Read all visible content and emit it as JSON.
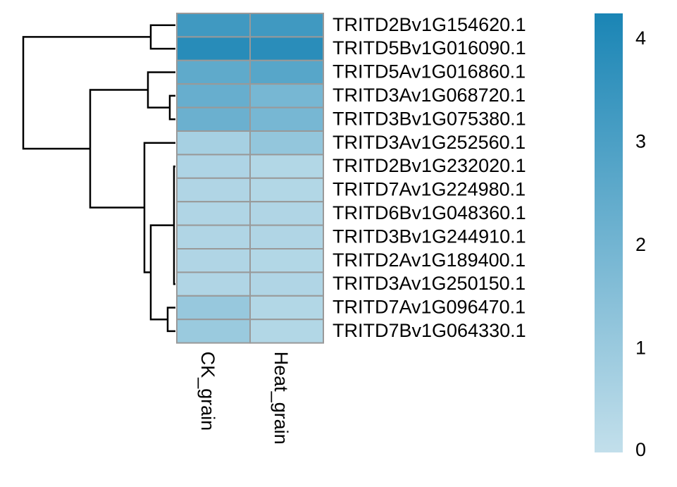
{
  "chart_data": {
    "type": "heatmap",
    "columns": [
      "CK_grain",
      "Heat_grain"
    ],
    "rows": [
      {
        "gene": "TRITD2Bv1G154620.1",
        "values": [
          3.3,
          3.3
        ]
      },
      {
        "gene": "TRITD5Bv1G016090.1",
        "values": [
          3.9,
          3.85
        ]
      },
      {
        "gene": "TRITD5Av1G016860.1",
        "values": [
          2.5,
          2.7
        ]
      },
      {
        "gene": "TRITD3Av1G068720.1",
        "values": [
          2.3,
          1.9
        ]
      },
      {
        "gene": "TRITD3Bv1G075380.1",
        "values": [
          2.2,
          1.9
        ]
      },
      {
        "gene": "TRITD3Av1G252560.1",
        "values": [
          0.7,
          1.2
        ]
      },
      {
        "gene": "TRITD2Bv1G232020.1",
        "values": [
          0.5,
          0.4
        ]
      },
      {
        "gene": "TRITD7Av1G224980.1",
        "values": [
          0.45,
          0.4
        ]
      },
      {
        "gene": "TRITD6Bv1G048360.1",
        "values": [
          0.45,
          0.45
        ]
      },
      {
        "gene": "TRITD3Bv1G244910.1",
        "values": [
          0.45,
          0.45
        ]
      },
      {
        "gene": "TRITD2Av1G189400.1",
        "values": [
          0.45,
          0.4
        ]
      },
      {
        "gene": "TRITD3Av1G250150.1",
        "values": [
          0.45,
          0.45
        ]
      },
      {
        "gene": "TRITD7Av1G096470.1",
        "values": [
          1.1,
          0.4
        ]
      },
      {
        "gene": "TRITD7Bv1G064330.1",
        "values": [
          1.0,
          0.4
        ]
      }
    ],
    "color_scale": {
      "min": 0,
      "max": 4.25,
      "low_color": "#c2dfeb",
      "high_color": "#1a85b5",
      "ticks": [
        0,
        1,
        2,
        3,
        4
      ]
    },
    "cell_border_color": "#999999",
    "dendrogram": "row"
  }
}
